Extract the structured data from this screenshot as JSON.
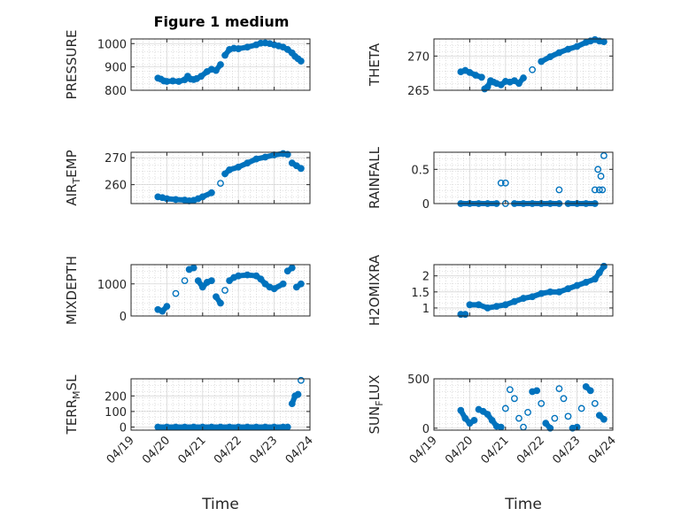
{
  "figure": {
    "title": "Figure 1 medium"
  },
  "colors": {
    "marker": "#0072BD",
    "axis": "#262626",
    "grid": "#c8c8c8"
  },
  "chart_data": [
    {
      "type": "scatter",
      "ylabel": "PRESSURE",
      "ylim": [
        800,
        1020
      ],
      "yticks": [
        800,
        900,
        1000
      ],
      "xlim": [
        "04/19",
        "04/24"
      ],
      "xticks": [],
      "x": [
        "04/19 18:00",
        "04/19 20:00",
        "04/19 22:00",
        "04/20 00:00",
        "04/20 04:00",
        "04/20 08:00",
        "04/20 12:00",
        "04/20 14:00",
        "04/20 16:00",
        "04/20 18:00",
        "04/20 20:00",
        "04/20 23:00",
        "04/21 03:00",
        "04/21 06:00",
        "04/21 09:00",
        "04/21 12:00",
        "04/21 15:00",
        "04/21 18:00",
        "04/21 21:00",
        "04/22 00:00",
        "04/22 06:00",
        "04/22 12:00",
        "04/22 15:00",
        "04/22 18:00",
        "04/22 21:00",
        "04/23 00:00",
        "04/23 03:00",
        "04/23 06:00",
        "04/23 09:00",
        "04/23 12:00",
        "04/23 14:00",
        "04/23 16:00",
        "04/23 18:00"
      ],
      "y": [
        852,
        848,
        840,
        838,
        840,
        838,
        845,
        860,
        848,
        846,
        850,
        860,
        880,
        890,
        885,
        910,
        950,
        975,
        980,
        978,
        985,
        995,
        1002,
        1003,
        1000,
        995,
        990,
        985,
        975,
        960,
        945,
        935,
        925
      ]
    },
    {
      "type": "scatter",
      "ylabel": "THETA",
      "ylim": [
        265,
        272.5
      ],
      "yticks": [
        265,
        270
      ],
      "xlim": [
        "04/19",
        "04/24"
      ],
      "xticks": [],
      "x": [
        "04/19 18:00",
        "04/19 21:00",
        "04/20 00:00",
        "04/20 04:00",
        "04/20 08:00",
        "04/20 10:00",
        "04/20 12:00",
        "04/20 14:00",
        "04/20 16:00",
        "04/20 18:00",
        "04/20 21:00",
        "04/21 00:00",
        "04/21 03:00",
        "04/21 06:00",
        "04/21 09:00",
        "04/21 12:00",
        "04/21 18:00",
        "04/22 00:00",
        "04/22 06:00",
        "04/22 12:00",
        "04/22 18:00",
        "04/23 00:00",
        "04/23 06:00",
        "04/23 09:00",
        "04/23 12:00",
        "04/23 15:00",
        "04/23 18:00"
      ],
      "y": [
        267.7,
        267.9,
        267.6,
        267.2,
        266.9,
        265.2,
        265.5,
        266.4,
        266.2,
        266.0,
        265.8,
        266.3,
        266.2,
        266.4,
        266.0,
        266.8,
        268.0,
        269.2,
        269.9,
        270.5,
        271.0,
        271.4,
        272.0,
        272.2,
        272.4,
        272.2,
        272.1
      ]
    },
    {
      "type": "scatter",
      "ylabel": "AIR_TEMP",
      "ylim": [
        253,
        272
      ],
      "yticks": [
        260,
        270
      ],
      "xlim": [
        "04/19",
        "04/24"
      ],
      "xticks": [],
      "x": [
        "04/19 18:00",
        "04/19 21:00",
        "04/20 00:00",
        "04/20 06:00",
        "04/20 12:00",
        "04/20 15:00",
        "04/20 18:00",
        "04/20 21:00",
        "04/21 00:00",
        "04/21 06:00",
        "04/21 12:00",
        "04/21 15:00",
        "04/21 18:00",
        "04/22 00:00",
        "04/22 06:00",
        "04/22 12:00",
        "04/22 18:00",
        "04/23 00:00",
        "04/23 06:00",
        "04/23 09:00",
        "04/23 12:00",
        "04/23 15:00",
        "04/23 18:00"
      ],
      "y": [
        255.5,
        255.2,
        254.8,
        254.5,
        254.3,
        254.0,
        254.2,
        254.8,
        255.5,
        257.0,
        260.5,
        264.0,
        265.5,
        266.5,
        268.0,
        269.5,
        270.2,
        271.0,
        271.5,
        271.2,
        268.0,
        267.0,
        266.0
      ]
    },
    {
      "type": "scatter",
      "ylabel": "RAINFALL",
      "ylim": [
        0,
        0.75
      ],
      "yticks": [
        0,
        0.5
      ],
      "xlim": [
        "04/19",
        "04/24"
      ],
      "xticks": [],
      "x": [
        "04/19 18:00",
        "04/20 00:00",
        "04/20 06:00",
        "04/20 12:00",
        "04/20 18:00",
        "04/21 00:00",
        "04/21 06:00",
        "04/21 12:00",
        "04/21 18:00",
        "04/22 00:00",
        "04/22 06:00",
        "04/22 12:00",
        "04/22 18:00",
        "04/23 00:00",
        "04/23 06:00",
        "04/23 12:00",
        "04/20 21:00",
        "04/21 00:00",
        "04/22 12:00",
        "04/23 12:00",
        "04/23 14:00",
        "04/23 15:00",
        "04/23 16:00",
        "04/23 17:00",
        "04/23 18:00"
      ],
      "y": [
        0,
        0,
        0,
        0,
        0,
        0,
        0,
        0,
        0,
        0,
        0,
        0,
        0,
        0,
        0,
        0,
        0.3,
        0.3,
        0.2,
        0.2,
        0.5,
        0.2,
        0.4,
        0.2,
        0.7
      ]
    },
    {
      "type": "scatter",
      "ylabel": "MIXDEPTH",
      "ylim": [
        0,
        1600
      ],
      "yticks": [
        0,
        1000
      ],
      "xlim": [
        "04/19",
        "04/24"
      ],
      "xticks": [],
      "x": [
        "04/19 18:00",
        "04/19 21:00",
        "04/20 00:00",
        "04/20 06:00",
        "04/20 12:00",
        "04/20 15:00",
        "04/20 18:00",
        "04/20 21:00",
        "04/21 00:00",
        "04/21 03:00",
        "04/21 06:00",
        "04/21 09:00",
        "04/21 12:00",
        "04/21 15:00",
        "04/21 18:00",
        "04/21 21:00",
        "04/22 00:00",
        "04/22 06:00",
        "04/22 12:00",
        "04/22 15:00",
        "04/22 18:00",
        "04/22 21:00",
        "04/23 00:00",
        "04/23 06:00",
        "04/23 09:00",
        "04/23 12:00",
        "04/23 15:00",
        "04/23 18:00"
      ],
      "y": [
        200,
        150,
        300,
        700,
        1100,
        1450,
        1500,
        1100,
        900,
        1050,
        1100,
        600,
        400,
        800,
        1100,
        1200,
        1250,
        1280,
        1250,
        1150,
        1000,
        900,
        850,
        1000,
        1400,
        1500,
        900,
        1000
      ]
    },
    {
      "type": "scatter",
      "ylabel": "H2OMIXRA",
      "ylim": [
        0.75,
        2.35
      ],
      "yticks": [
        1,
        1.5,
        2
      ],
      "xlim": [
        "04/19",
        "04/24"
      ],
      "xticks": [],
      "x": [
        "04/19 18:00",
        "04/19 21:00",
        "04/20 00:00",
        "04/20 06:00",
        "04/20 12:00",
        "04/20 18:00",
        "04/21 00:00",
        "04/21 06:00",
        "04/21 12:00",
        "04/21 18:00",
        "04/22 00:00",
        "04/22 06:00",
        "04/22 12:00",
        "04/22 18:00",
        "04/23 00:00",
        "04/23 06:00",
        "04/23 12:00",
        "04/23 15:00",
        "04/23 18:00"
      ],
      "y": [
        0.8,
        0.8,
        1.1,
        1.1,
        1.0,
        1.05,
        1.1,
        1.2,
        1.3,
        1.35,
        1.45,
        1.5,
        1.5,
        1.6,
        1.7,
        1.8,
        1.9,
        2.1,
        2.3
      ]
    },
    {
      "type": "scatter",
      "ylabel": "TERR_MSL",
      "ylim": [
        -20,
        310
      ],
      "yticks": [
        0,
        100,
        200
      ],
      "xlim": [
        "04/19",
        "04/24"
      ],
      "xticks": [
        "04/19",
        "04/20",
        "04/21",
        "04/22",
        "04/23",
        "04/24"
      ],
      "xlabel": "Time",
      "x": [
        "04/19 18:00",
        "04/20 00:00",
        "04/20 06:00",
        "04/20 12:00",
        "04/20 18:00",
        "04/21 00:00",
        "04/21 06:00",
        "04/21 12:00",
        "04/21 18:00",
        "04/22 00:00",
        "04/22 06:00",
        "04/22 12:00",
        "04/22 18:00",
        "04/23 00:00",
        "04/23 06:00",
        "04/23 09:00",
        "04/23 12:00",
        "04/23 14:00",
        "04/23 16:00",
        "04/23 18:00"
      ],
      "y": [
        0,
        0,
        0,
        0,
        0,
        0,
        0,
        0,
        0,
        0,
        0,
        0,
        0,
        0,
        0,
        0,
        150,
        200,
        210,
        300
      ]
    },
    {
      "type": "scatter",
      "ylabel": "SUN_FLUX",
      "ylim": [
        -20,
        500
      ],
      "yticks": [
        0,
        500
      ],
      "xlim": [
        "04/19",
        "04/24"
      ],
      "xticks": [
        "04/19",
        "04/20",
        "04/21",
        "04/22",
        "04/23",
        "04/24"
      ],
      "xlabel": "Time",
      "x": [
        "04/19 18:00",
        "04/19 21:00",
        "04/20 00:00",
        "04/20 03:00",
        "04/20 06:00",
        "04/20 09:00",
        "04/20 12:00",
        "04/20 15:00",
        "04/20 18:00",
        "04/20 21:00",
        "04/21 00:00",
        "04/21 03:00",
        "04/21 06:00",
        "04/21 09:00",
        "04/21 12:00",
        "04/21 15:00",
        "04/21 18:00",
        "04/21 21:00",
        "04/22 00:00",
        "04/22 03:00",
        "04/22 06:00",
        "04/22 09:00",
        "04/22 12:00",
        "04/22 15:00",
        "04/22 18:00",
        "04/22 21:00",
        "04/23 00:00",
        "04/23 03:00",
        "04/23 06:00",
        "04/23 09:00",
        "04/23 12:00",
        "04/23 15:00",
        "04/23 18:00"
      ],
      "y": [
        180,
        100,
        50,
        80,
        190,
        170,
        140,
        80,
        20,
        10,
        200,
        390,
        300,
        100,
        10,
        160,
        370,
        380,
        250,
        50,
        0,
        100,
        400,
        300,
        120,
        0,
        10,
        200,
        420,
        380,
        250,
        130,
        90
      ]
    }
  ]
}
